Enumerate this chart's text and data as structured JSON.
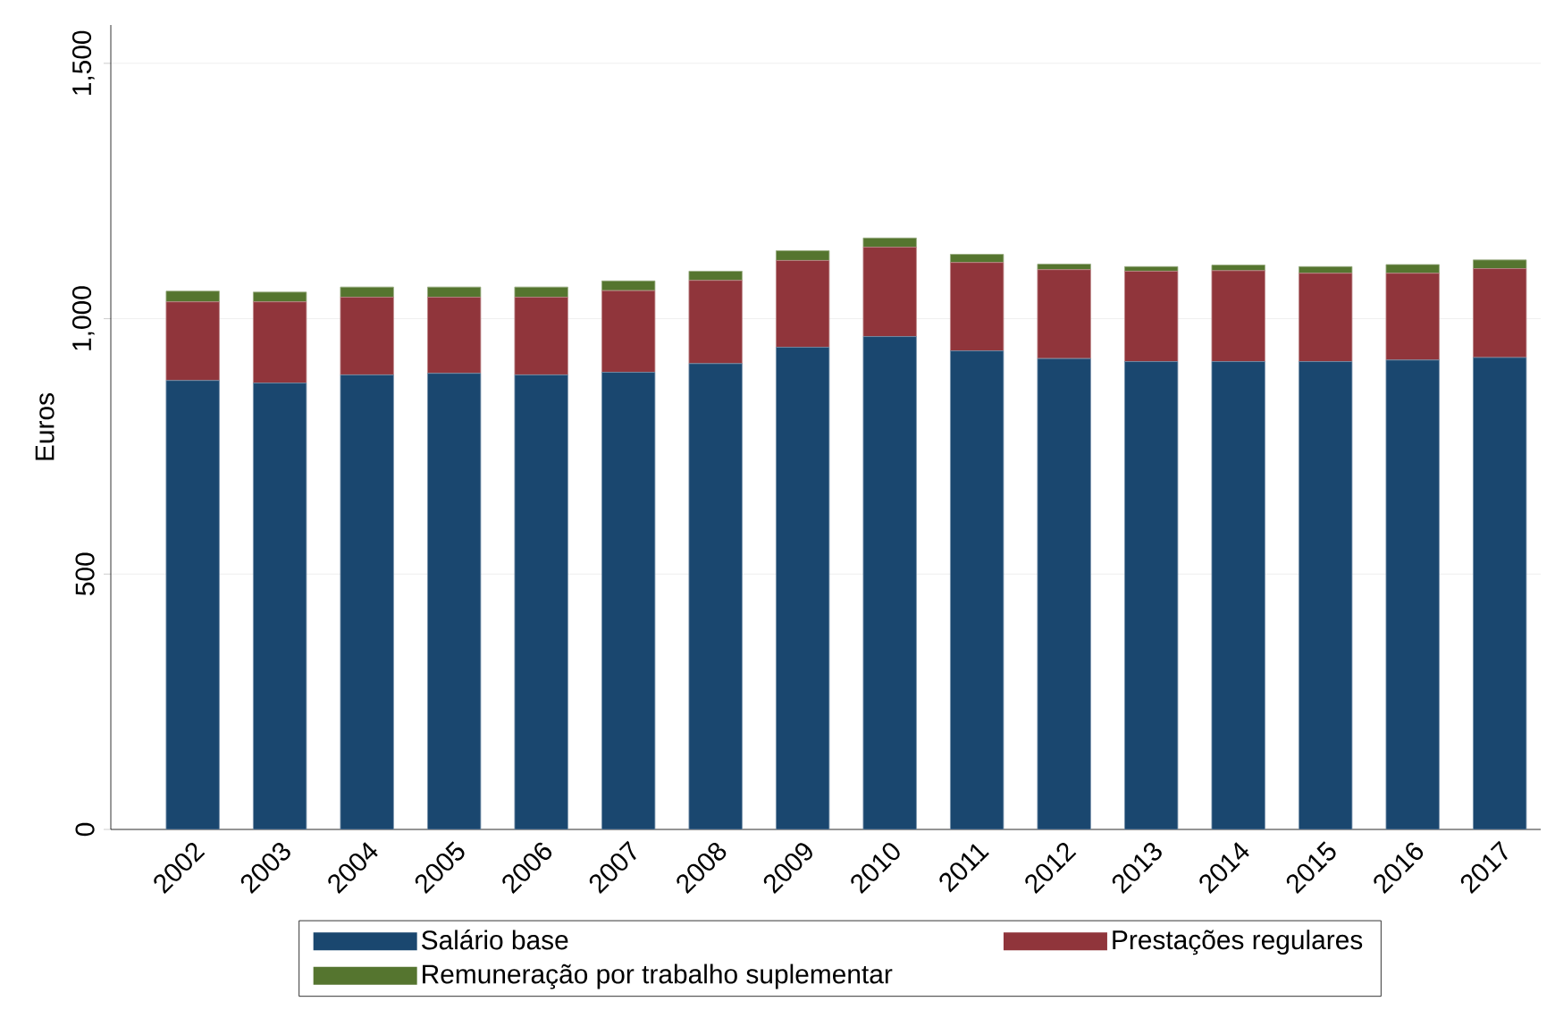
{
  "chart_data": {
    "type": "bar",
    "stacked": true,
    "ylabel": "Euros",
    "categories": [
      "2002",
      "2003",
      "2004",
      "2005",
      "2006",
      "2007",
      "2008",
      "2009",
      "2010",
      "2011",
      "2012",
      "2013",
      "2014",
      "2015",
      "2016",
      "2017"
    ],
    "series": [
      {
        "name": "Salário base",
        "color": "#1a476f",
        "values": [
          879,
          874,
          890,
          893,
          890,
          895,
          912,
          944,
          965,
          937,
          922,
          916,
          916,
          916,
          919,
          924
        ]
      },
      {
        "name": "Prestações regulares",
        "color": "#90353b",
        "values": [
          154,
          159,
          152,
          149,
          152,
          160,
          163,
          170,
          175,
          173,
          174,
          177,
          178,
          173,
          170,
          174
        ]
      },
      {
        "name": "Remuneração por trabalho suplementar",
        "color": "#55752f",
        "values": [
          21,
          19,
          20,
          20,
          20,
          19,
          18,
          19,
          18,
          16,
          11,
          9,
          11,
          13,
          17,
          17
        ]
      }
    ],
    "ylim": [
      0,
      1575
    ],
    "yticks": [
      0,
      500,
      {
        "value": 1000,
        "label": "1,000"
      },
      {
        "value": 1500,
        "label": "1,500"
      }
    ],
    "grid": "y",
    "legend": "bottom"
  }
}
